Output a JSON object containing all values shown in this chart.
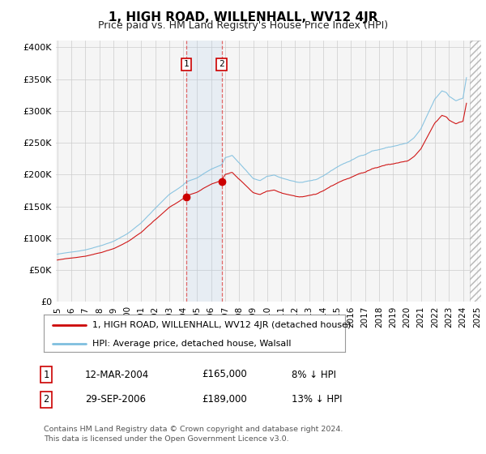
{
  "title": "1, HIGH ROAD, WILLENHALL, WV12 4JR",
  "subtitle": "Price paid vs. HM Land Registry's House Price Index (HPI)",
  "legend_line1": "1, HIGH ROAD, WILLENHALL, WV12 4JR (detached house)",
  "legend_line2": "HPI: Average price, detached house, Walsall",
  "footnote": "Contains HM Land Registry data © Crown copyright and database right 2024.\nThis data is licensed under the Open Government Licence v3.0.",
  "transaction1_label": "1",
  "transaction1_date": "12-MAR-2004",
  "transaction1_price": "£165,000",
  "transaction1_hpi": "8% ↓ HPI",
  "transaction2_label": "2",
  "transaction2_date": "29-SEP-2006",
  "transaction2_price": "£189,000",
  "transaction2_hpi": "13% ↓ HPI",
  "hpi_color": "#7fbfdf",
  "price_color": "#cc0000",
  "marker1_x": 2004.21,
  "marker1_y": 165000,
  "marker2_x": 2006.75,
  "marker2_y": 189000,
  "ylim_min": 0,
  "ylim_max": 410000,
  "xlim_min": 1994.9,
  "xlim_max": 2025.3,
  "yticks": [
    0,
    50000,
    100000,
    150000,
    200000,
    250000,
    300000,
    350000,
    400000
  ],
  "ytick_labels": [
    "£0",
    "£50K",
    "£100K",
    "£150K",
    "£200K",
    "£250K",
    "£300K",
    "£350K",
    "£400K"
  ],
  "xtick_years": [
    1995,
    1996,
    1997,
    1998,
    1999,
    2000,
    2001,
    2002,
    2003,
    2004,
    2005,
    2006,
    2007,
    2008,
    2009,
    2010,
    2011,
    2012,
    2013,
    2014,
    2015,
    2016,
    2017,
    2018,
    2019,
    2020,
    2021,
    2022,
    2023,
    2024,
    2025
  ],
  "bg_color": "#f5f5f5",
  "grid_color": "#cccccc",
  "hatch_color": "#aaaaaa"
}
